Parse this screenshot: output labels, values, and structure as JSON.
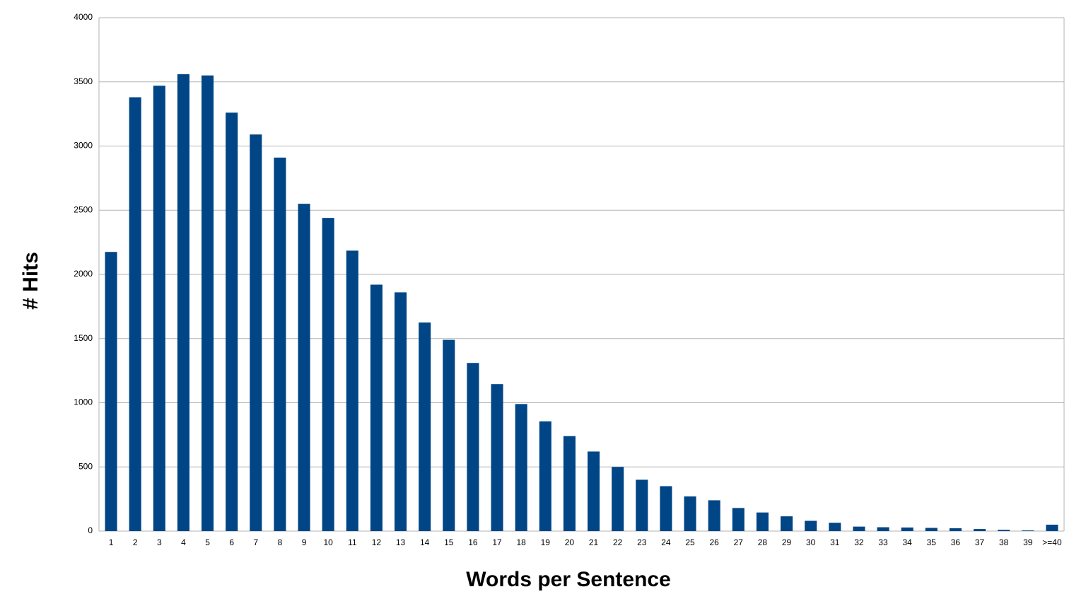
{
  "chart_data": {
    "type": "bar",
    "x_label": "Words per Sentence",
    "y_label": "# Hits",
    "categories": [
      "1",
      "2",
      "3",
      "4",
      "5",
      "6",
      "7",
      "8",
      "9",
      "10",
      "11",
      "12",
      "13",
      "14",
      "15",
      "16",
      "17",
      "18",
      "19",
      "20",
      "21",
      "22",
      "23",
      "24",
      "25",
      "26",
      "27",
      "28",
      "29",
      "30",
      "31",
      "32",
      "33",
      "34",
      "35",
      "36",
      "37",
      "38",
      "39",
      ">=40"
    ],
    "values": [
      2175,
      3380,
      3470,
      3560,
      3550,
      3260,
      3090,
      2910,
      2550,
      2440,
      2185,
      1920,
      1860,
      1625,
      1490,
      1310,
      1145,
      990,
      855,
      740,
      620,
      500,
      400,
      350,
      270,
      240,
      180,
      145,
      115,
      80,
      65,
      35,
      30,
      28,
      25,
      22,
      16,
      10,
      5,
      50
    ],
    "color": "#004586",
    "ylim": [
      0,
      4000
    ],
    "yticks": [
      0,
      500,
      1000,
      1500,
      2000,
      2500,
      3000,
      3500,
      4000
    ],
    "grid": true
  }
}
